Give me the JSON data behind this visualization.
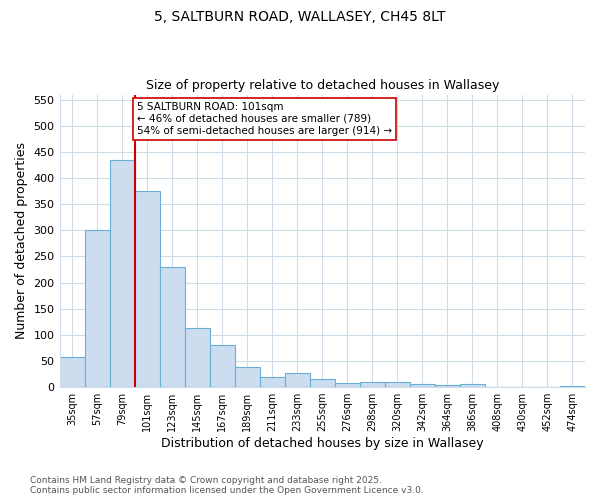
{
  "title_line1": "5, SALTBURN ROAD, WALLASEY, CH45 8LT",
  "title_line2": "Size of property relative to detached houses in Wallasey",
  "xlabel": "Distribution of detached houses by size in Wallasey",
  "ylabel": "Number of detached properties",
  "categories": [
    "35sqm",
    "57sqm",
    "79sqm",
    "101sqm",
    "123sqm",
    "145sqm",
    "167sqm",
    "189sqm",
    "211sqm",
    "233sqm",
    "255sqm",
    "276sqm",
    "298sqm",
    "320sqm",
    "342sqm",
    "364sqm",
    "386sqm",
    "408sqm",
    "430sqm",
    "452sqm",
    "474sqm"
  ],
  "values": [
    57,
    300,
    435,
    375,
    230,
    113,
    80,
    38,
    20,
    27,
    15,
    8,
    10,
    9,
    5,
    4,
    5,
    0,
    0,
    0,
    3
  ],
  "bar_color": "#ccddf0",
  "bar_edge_color": "#6aaed6",
  "red_line_index": 3,
  "red_line_color": "#cc0000",
  "annotation_text": "5 SALTBURN ROAD: 101sqm\n← 46% of detached houses are smaller (789)\n54% of semi-detached houses are larger (914) →",
  "annotation_box_color": "#ffffff",
  "annotation_box_edge_color": "#cc0000",
  "ylim": [
    0,
    560
  ],
  "yticks": [
    0,
    50,
    100,
    150,
    200,
    250,
    300,
    350,
    400,
    450,
    500,
    550
  ],
  "footer_line1": "Contains HM Land Registry data © Crown copyright and database right 2025.",
  "footer_line2": "Contains public sector information licensed under the Open Government Licence v3.0.",
  "bg_color": "#ffffff",
  "plot_bg_color": "#ffffff",
  "grid_color": "#d0dce8"
}
